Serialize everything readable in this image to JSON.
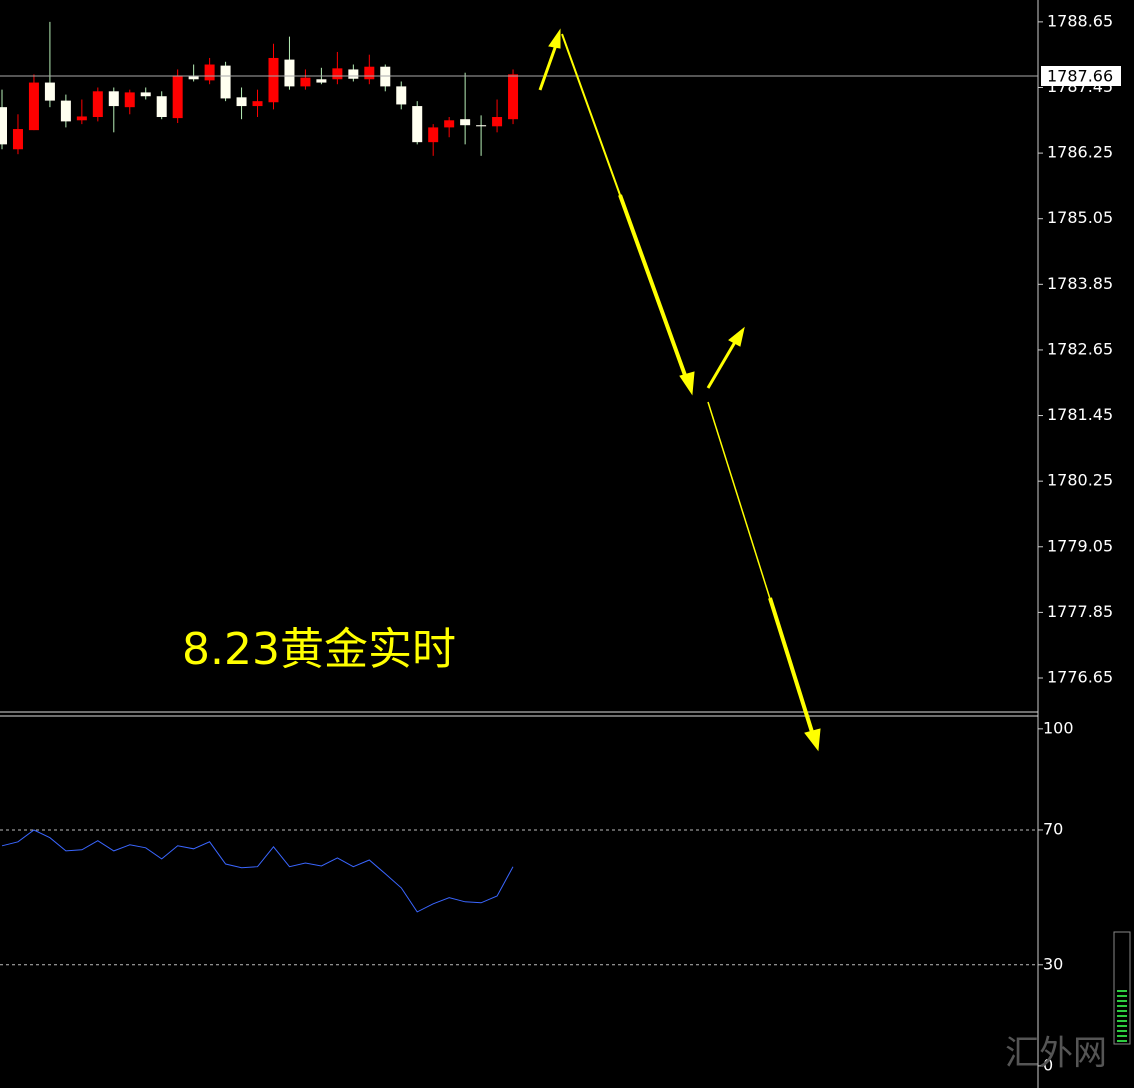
{
  "chart_data": [
    {
      "type": "candlestick",
      "title": "8.23黄金实时",
      "categories": [
        null,
        null,
        null,
        null,
        null,
        null,
        null,
        null,
        null,
        null,
        null,
        null,
        null,
        null,
        null,
        null,
        null,
        null,
        null,
        null,
        null,
        null,
        null,
        null,
        null,
        null,
        null,
        null,
        null,
        null,
        null,
        null,
        null
      ],
      "open": [
        1787.09,
        1786.32,
        1786.67,
        1787.54,
        1787.21,
        1786.85,
        1786.91,
        1787.38,
        1787.09,
        1787.36,
        1787.29,
        1786.89,
        1787.65,
        1787.58,
        1787.85,
        1787.27,
        1787.11,
        1787.18,
        1787.96,
        1787.47,
        1787.6,
        1787.6,
        1787.78,
        1787.6,
        1787.83,
        1787.47,
        1787.11,
        1786.45,
        1786.72,
        1786.87,
        1786.76,
        1786.74,
        1786.87
      ],
      "high": [
        1787.41,
        1786.96,
        1787.69,
        1788.65,
        1787.32,
        1787.23,
        1787.45,
        1787.45,
        1787.41,
        1787.45,
        1787.38,
        1787.78,
        1787.87,
        1787.99,
        1787.92,
        1787.45,
        1787.41,
        1788.25,
        1788.38,
        1787.78,
        1787.81,
        1788.1,
        1787.87,
        1788.05,
        1787.87,
        1787.56,
        1787.2,
        1786.78,
        1786.91,
        1787.72,
        1786.94,
        1787.23,
        1787.78
      ],
      "low": [
        1786.32,
        1786.23,
        1786.67,
        1787.09,
        1786.72,
        1786.78,
        1786.83,
        1786.63,
        1786.96,
        1787.23,
        1786.87,
        1786.8,
        1787.56,
        1787.51,
        1787.2,
        1786.87,
        1786.91,
        1787.05,
        1787.41,
        1787.41,
        1787.51,
        1787.51,
        1787.56,
        1787.51,
        1787.38,
        1787.05,
        1786.41,
        1786.2,
        1786.54,
        1786.41,
        1786.2,
        1786.63,
        1786.78
      ],
      "close": [
        1786.41,
        1786.69,
        1787.54,
        1787.21,
        1786.83,
        1786.92,
        1787.38,
        1787.11,
        1787.36,
        1787.29,
        1786.91,
        1787.67,
        1787.6,
        1787.87,
        1787.25,
        1787.11,
        1787.2,
        1787.99,
        1787.47,
        1787.63,
        1787.54,
        1787.8,
        1787.61,
        1787.83,
        1787.47,
        1787.14,
        1786.45,
        1786.72,
        1786.85,
        1786.76,
        1786.74,
        1786.91,
        1787.69
      ],
      "up_color": "#ff0000",
      "down_color": "#fffff0",
      "wick_color": "#b8f0b8",
      "last_price": 1787.66,
      "ylim": [
        1776.01,
        1789.05
      ],
      "yticks": [
        1788.65,
        1787.45,
        1786.25,
        1785.05,
        1783.85,
        1782.65,
        1781.45,
        1780.25,
        1779.05,
        1777.85,
        1776.65
      ]
    },
    {
      "type": "line",
      "categories": [
        null,
        null,
        null,
        null,
        null,
        null,
        null,
        null,
        null,
        null,
        null,
        null,
        null,
        null,
        null,
        null,
        null,
        null,
        null,
        null,
        null,
        null,
        null,
        null,
        null,
        null,
        null,
        null,
        null,
        null,
        null,
        null,
        null
      ],
      "series": [
        {
          "color": "#3a66ff",
          "values": [
            65.3,
            66.5,
            70.0,
            67.7,
            63.8,
            64.1,
            66.8,
            63.8,
            65.6,
            64.7,
            61.4,
            65.3,
            64.4,
            66.5,
            59.9,
            58.8,
            59.1,
            65.0,
            59.1,
            60.2,
            59.3,
            61.7,
            59.1,
            61.1,
            57.0,
            52.8,
            45.7,
            48.1,
            49.9,
            48.7,
            48.4,
            50.4,
            59.1
          ]
        }
      ],
      "ylim": [
        -2.7,
        104.7
      ],
      "yticks": [
        0,
        30,
        70,
        100
      ],
      "levels": [
        30,
        70
      ]
    }
  ]
}
